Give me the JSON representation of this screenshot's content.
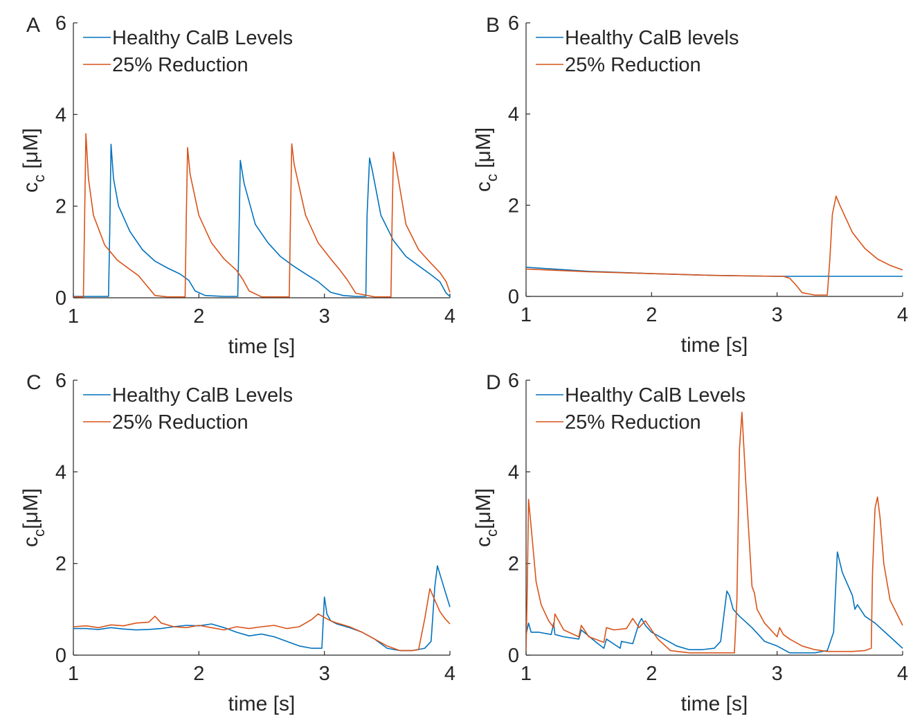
{
  "colors": {
    "healthy": "#0072BD",
    "reduced": "#D95319",
    "axis": "#262626"
  },
  "chart_data": [
    {
      "type": "line",
      "panel_label": "A",
      "xlabel": "time [s]",
      "ylabel_main": "c",
      "ylabel_sub": "c",
      "ylabel_units": " [μM]",
      "xlim": [
        1,
        4
      ],
      "ylim": [
        0,
        6
      ],
      "xticks": [
        "1",
        "2",
        "3",
        "4"
      ],
      "yticks": [
        "0",
        "2",
        "4",
        "6"
      ],
      "legend_position": "top-left",
      "series": [
        {
          "name": "Healthy CalB Levels",
          "color": "#0072BD",
          "x": [
            1.0,
            1.28,
            1.29,
            1.3,
            1.32,
            1.36,
            1.45,
            1.55,
            1.65,
            1.75,
            1.85,
            1.92,
            1.97,
            2.05,
            2.2,
            2.31,
            2.32,
            2.33,
            2.36,
            2.45,
            2.55,
            2.65,
            2.75,
            2.85,
            2.95,
            3.05,
            3.15,
            3.25,
            3.33,
            3.34,
            3.36,
            3.38,
            3.45,
            3.55,
            3.65,
            3.75,
            3.85,
            3.92,
            3.97,
            4.0
          ],
          "y": [
            0.03,
            0.03,
            1.5,
            3.35,
            2.6,
            2.0,
            1.45,
            1.05,
            0.8,
            0.65,
            0.52,
            0.38,
            0.15,
            0.05,
            0.03,
            0.03,
            1.5,
            3.0,
            2.5,
            1.6,
            1.2,
            0.9,
            0.7,
            0.52,
            0.35,
            0.12,
            0.05,
            0.03,
            0.03,
            1.8,
            3.05,
            2.8,
            1.8,
            1.25,
            0.9,
            0.7,
            0.5,
            0.35,
            0.1,
            0.03
          ]
        },
        {
          "name": "25% Reduction",
          "color": "#D95319",
          "x": [
            1.0,
            1.08,
            1.09,
            1.1,
            1.12,
            1.16,
            1.25,
            1.35,
            1.45,
            1.52,
            1.58,
            1.65,
            1.75,
            1.89,
            1.9,
            1.91,
            1.93,
            2.0,
            2.1,
            2.2,
            2.3,
            2.35,
            2.4,
            2.5,
            2.72,
            2.73,
            2.74,
            2.76,
            2.85,
            2.95,
            3.05,
            3.12,
            3.18,
            3.25,
            3.4,
            3.53,
            3.54,
            3.55,
            3.57,
            3.65,
            3.75,
            3.85,
            3.92,
            3.97,
            4.0
          ],
          "y": [
            0.02,
            0.02,
            1.8,
            3.58,
            2.6,
            1.8,
            1.15,
            0.82,
            0.62,
            0.48,
            0.28,
            0.05,
            0.02,
            0.02,
            1.8,
            3.28,
            2.7,
            1.8,
            1.2,
            0.85,
            0.6,
            0.4,
            0.15,
            0.02,
            0.02,
            1.8,
            3.36,
            2.9,
            1.8,
            1.2,
            0.85,
            0.62,
            0.4,
            0.1,
            0.02,
            0.02,
            1.8,
            3.18,
            2.9,
            1.6,
            1.05,
            0.75,
            0.55,
            0.35,
            0.12
          ]
        }
      ]
    },
    {
      "type": "line",
      "panel_label": "B",
      "xlabel": "time [s]",
      "ylabel_main": "c",
      "ylabel_sub": "c",
      "ylabel_units": " [μM]",
      "xlim": [
        1,
        4
      ],
      "ylim": [
        0,
        6
      ],
      "xticks": [
        "1",
        "2",
        "3",
        "4"
      ],
      "yticks": [
        "0",
        "2",
        "4",
        "6"
      ],
      "legend_position": "top-left",
      "series": [
        {
          "name": "Healthy CalB levels",
          "color": "#0072BD",
          "x": [
            1.0,
            1.5,
            2.0,
            2.5,
            3.0,
            3.5,
            4.0
          ],
          "y": [
            0.64,
            0.55,
            0.5,
            0.46,
            0.44,
            0.44,
            0.44
          ]
        },
        {
          "name": "25% Reduction",
          "color": "#D95319",
          "x": [
            1.0,
            1.5,
            2.0,
            2.5,
            3.0,
            3.05,
            3.1,
            3.15,
            3.2,
            3.3,
            3.4,
            3.42,
            3.44,
            3.47,
            3.5,
            3.6,
            3.7,
            3.8,
            3.9,
            4.0
          ],
          "y": [
            0.6,
            0.54,
            0.5,
            0.46,
            0.44,
            0.44,
            0.4,
            0.25,
            0.08,
            0.03,
            0.03,
            0.8,
            1.8,
            2.2,
            2.0,
            1.4,
            1.05,
            0.82,
            0.68,
            0.58
          ]
        }
      ]
    },
    {
      "type": "line",
      "panel_label": "C",
      "xlabel": "time [s]",
      "ylabel_main": "c",
      "ylabel_sub": "c",
      "ylabel_units": "[μM]",
      "xlim": [
        1,
        4
      ],
      "ylim": [
        0,
        6
      ],
      "xticks": [
        "1",
        "2",
        "3",
        "4"
      ],
      "yticks": [
        "0",
        "2",
        "4",
        "6"
      ],
      "legend_position": "top-left",
      "series": [
        {
          "name": "Healthy CalB Levels",
          "color": "#0072BD",
          "x": [
            1.0,
            1.1,
            1.2,
            1.3,
            1.4,
            1.5,
            1.6,
            1.7,
            1.8,
            1.9,
            2.0,
            2.1,
            2.2,
            2.3,
            2.4,
            2.5,
            2.6,
            2.7,
            2.8,
            2.9,
            2.98,
            3.0,
            3.02,
            3.05,
            3.1,
            3.2,
            3.3,
            3.4,
            3.5,
            3.6,
            3.7,
            3.8,
            3.85,
            3.88,
            3.9,
            3.95,
            4.0
          ],
          "y": [
            0.58,
            0.58,
            0.56,
            0.6,
            0.57,
            0.55,
            0.56,
            0.58,
            0.62,
            0.65,
            0.64,
            0.68,
            0.6,
            0.5,
            0.42,
            0.46,
            0.4,
            0.3,
            0.2,
            0.15,
            0.15,
            1.27,
            0.9,
            0.75,
            0.68,
            0.6,
            0.5,
            0.35,
            0.15,
            0.1,
            0.1,
            0.15,
            0.3,
            1.5,
            1.95,
            1.5,
            1.05
          ]
        },
        {
          "name": "25% Reduction",
          "color": "#D95319",
          "x": [
            1.0,
            1.1,
            1.2,
            1.3,
            1.4,
            1.5,
            1.6,
            1.65,
            1.7,
            1.8,
            1.9,
            2.0,
            2.1,
            2.2,
            2.3,
            2.4,
            2.5,
            2.6,
            2.7,
            2.8,
            2.9,
            2.95,
            3.0,
            3.05,
            3.1,
            3.2,
            3.3,
            3.4,
            3.5,
            3.6,
            3.7,
            3.75,
            3.8,
            3.84,
            3.88,
            3.92,
            3.96,
            4.0
          ],
          "y": [
            0.62,
            0.64,
            0.6,
            0.66,
            0.64,
            0.7,
            0.72,
            0.85,
            0.7,
            0.62,
            0.6,
            0.65,
            0.6,
            0.55,
            0.62,
            0.58,
            0.62,
            0.65,
            0.58,
            0.62,
            0.78,
            0.9,
            0.82,
            0.75,
            0.7,
            0.62,
            0.5,
            0.35,
            0.2,
            0.1,
            0.1,
            0.12,
            0.8,
            1.45,
            1.2,
            0.95,
            0.8,
            0.68
          ]
        }
      ]
    },
    {
      "type": "line",
      "panel_label": "D",
      "xlabel": "time [s]",
      "ylabel_main": "c",
      "ylabel_sub": "c",
      "ylabel_units": "[μM]",
      "xlim": [
        1,
        4
      ],
      "ylim": [
        0,
        6
      ],
      "xticks": [
        "1",
        "2",
        "3",
        "4"
      ],
      "yticks": [
        "0",
        "2",
        "4",
        "6"
      ],
      "legend_position": "top-left",
      "series": [
        {
          "name": "Healthy CalB Levels",
          "color": "#0072BD",
          "x": [
            1.0,
            1.02,
            1.04,
            1.1,
            1.2,
            1.22,
            1.23,
            1.3,
            1.42,
            1.44,
            1.55,
            1.62,
            1.64,
            1.75,
            1.76,
            1.85,
            1.9,
            1.92,
            1.95,
            2.0,
            2.1,
            2.2,
            2.3,
            2.4,
            2.5,
            2.55,
            2.6,
            2.62,
            2.65,
            2.7,
            2.8,
            2.85,
            2.9,
            3.0,
            3.1,
            3.2,
            3.3,
            3.4,
            3.45,
            3.48,
            3.52,
            3.6,
            3.62,
            3.64,
            3.7,
            3.78,
            3.82,
            3.84,
            3.9,
            4.0
          ],
          "y": [
            0.45,
            0.7,
            0.5,
            0.5,
            0.45,
            0.7,
            0.45,
            0.4,
            0.35,
            0.55,
            0.3,
            0.15,
            0.35,
            0.15,
            0.3,
            0.25,
            0.7,
            0.8,
            0.65,
            0.5,
            0.35,
            0.2,
            0.12,
            0.12,
            0.15,
            0.3,
            1.4,
            1.3,
            1.0,
            0.85,
            0.6,
            0.45,
            0.3,
            0.2,
            0.05,
            0.05,
            0.05,
            0.1,
            0.5,
            2.25,
            1.8,
            1.3,
            1.0,
            1.1,
            0.85,
            0.7,
            0.6,
            0.55,
            0.4,
            0.15
          ]
        },
        {
          "name": "25% Reduction",
          "color": "#D95319",
          "x": [
            1.0,
            1.01,
            1.02,
            1.04,
            1.08,
            1.12,
            1.18,
            1.22,
            1.23,
            1.3,
            1.42,
            1.44,
            1.5,
            1.62,
            1.64,
            1.7,
            1.8,
            1.85,
            1.9,
            1.95,
            2.05,
            2.15,
            2.3,
            2.5,
            2.66,
            2.68,
            2.7,
            2.72,
            2.75,
            2.8,
            2.82,
            2.84,
            2.9,
            3.0,
            3.02,
            3.05,
            3.1,
            3.2,
            3.3,
            3.4,
            3.5,
            3.6,
            3.7,
            3.75,
            3.76,
            3.78,
            3.8,
            3.82,
            3.85,
            3.9,
            4.0
          ],
          "y": [
            0.1,
            1.5,
            3.4,
            2.8,
            1.6,
            1.1,
            0.75,
            0.6,
            0.9,
            0.55,
            0.4,
            0.65,
            0.4,
            0.28,
            0.6,
            0.55,
            0.58,
            0.8,
            0.6,
            0.75,
            0.35,
            0.1,
            0.05,
            0.05,
            0.05,
            1.2,
            4.5,
            5.3,
            3.8,
            1.5,
            1.35,
            1.0,
            0.7,
            0.4,
            0.6,
            0.45,
            0.35,
            0.2,
            0.12,
            0.08,
            0.08,
            0.08,
            0.1,
            0.15,
            1.8,
            3.2,
            3.45,
            3.0,
            2.0,
            1.2,
            0.65
          ]
        }
      ]
    }
  ]
}
